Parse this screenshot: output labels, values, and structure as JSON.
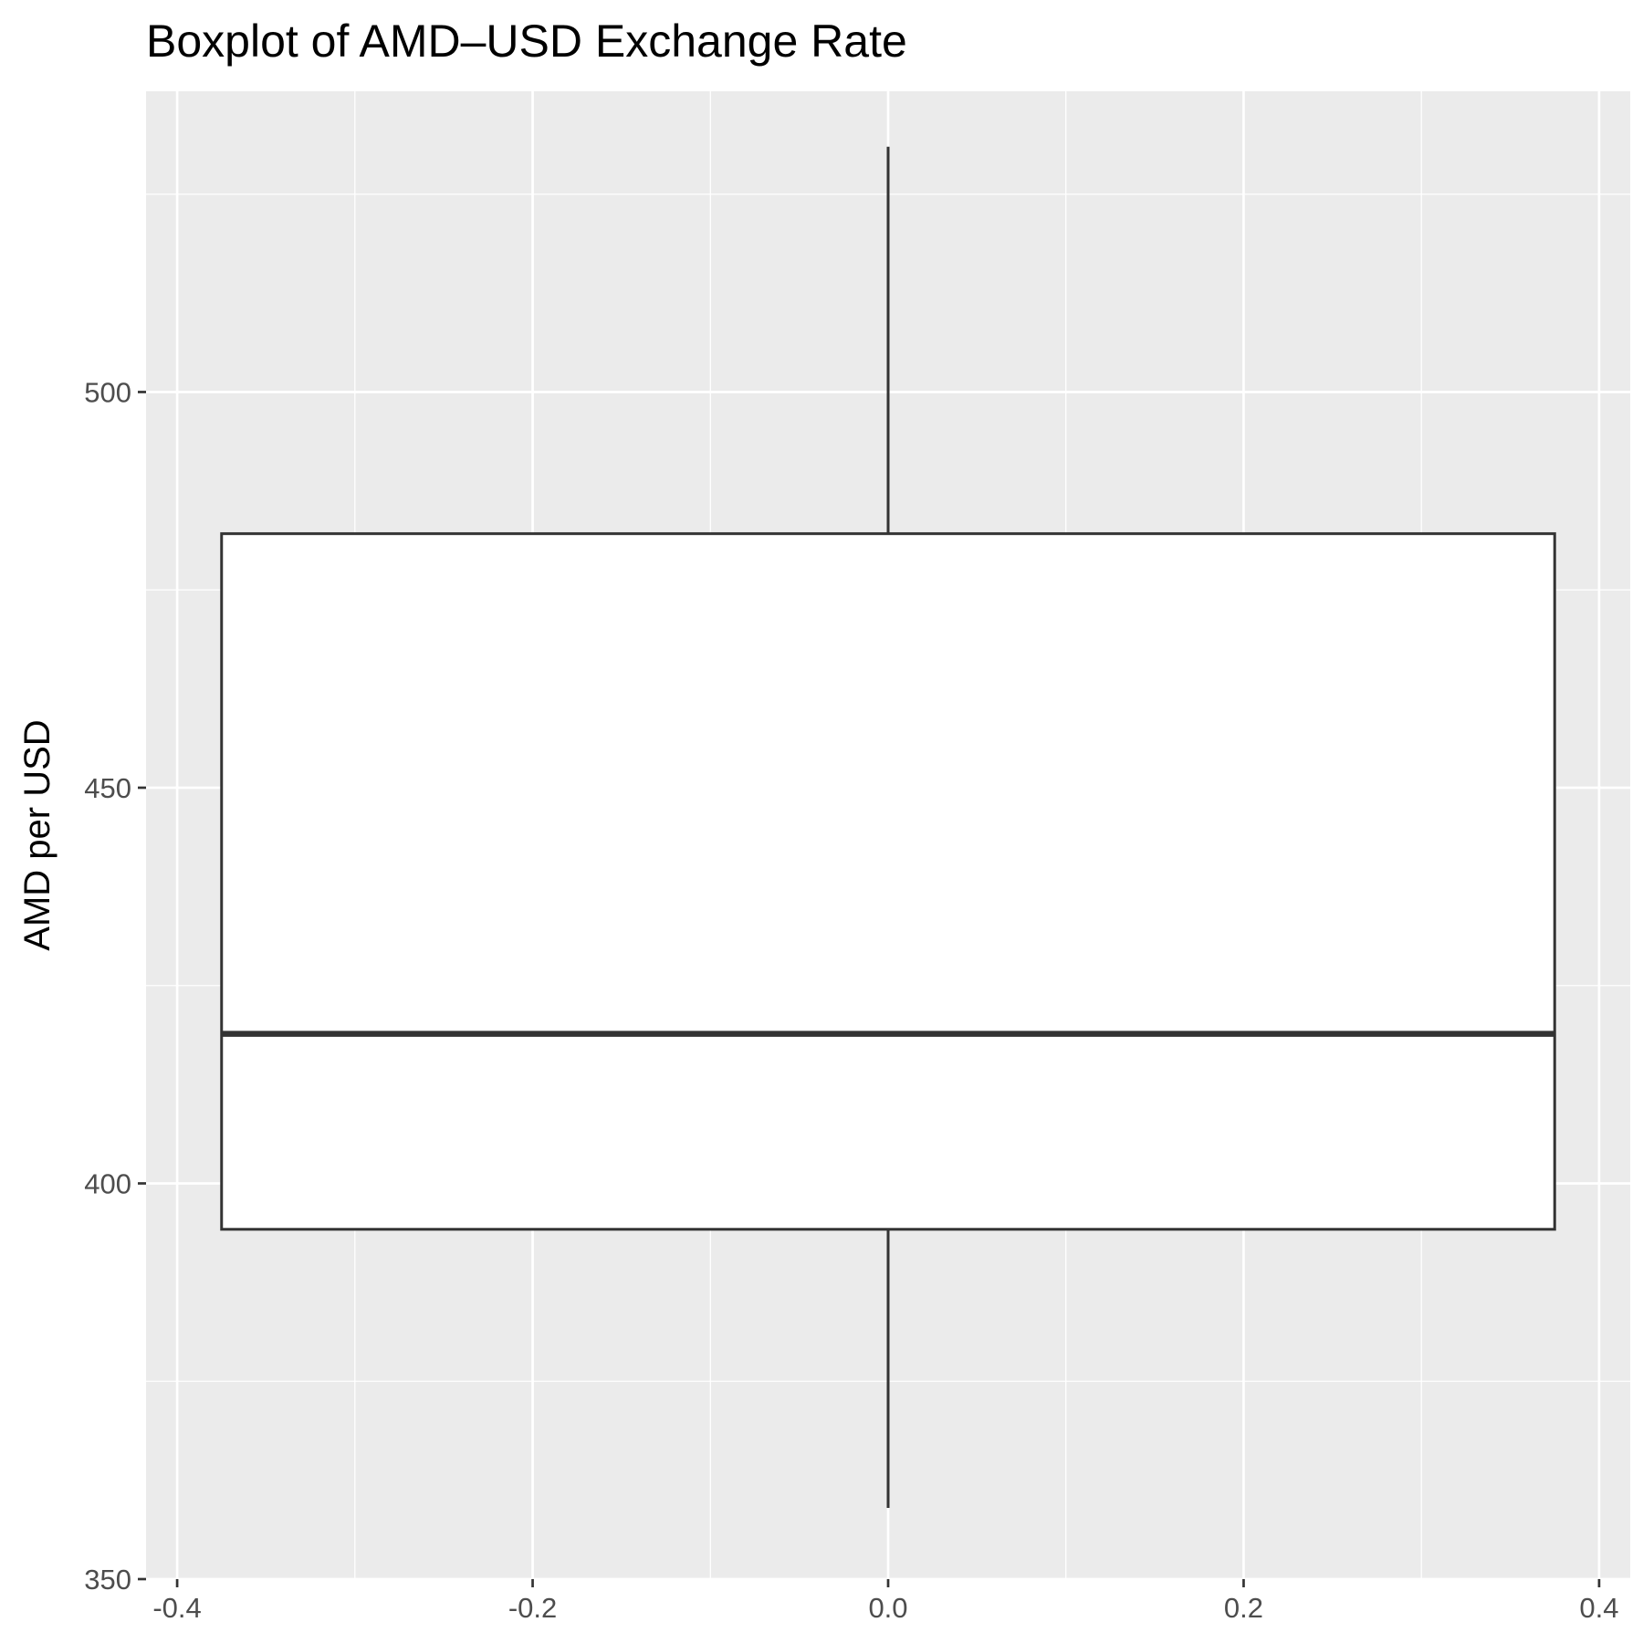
{
  "chart_data": {
    "type": "boxplot",
    "title": "Boxplot of AMD–USD Exchange Rate",
    "xlabel": "",
    "ylabel": "AMD per USD",
    "xlim": [
      -0.4,
      0.4
    ],
    "ylim": [
      350,
      531
    ],
    "x_ticks": [
      "-0.4",
      "-0.2",
      "0.0",
      "0.2",
      "0.4"
    ],
    "x_tick_values": [
      -0.4,
      -0.2,
      0.0,
      0.2,
      0.4
    ],
    "y_ticks": [
      "350",
      "400",
      "450",
      "500"
    ],
    "y_tick_values": [
      350,
      400,
      450,
      500
    ],
    "grid": true,
    "box": {
      "x_center": 0.0,
      "x_range": [
        -0.375,
        0.375
      ],
      "whisker_low": 359.0,
      "q1": 394.2,
      "median": 418.9,
      "q3": 482.1,
      "whisker_high": 531.0
    },
    "colors": {
      "panel_background": "#ebebeb",
      "grid": "#ffffff",
      "box_fill": "#ffffff",
      "box_stroke": "#333333"
    }
  }
}
